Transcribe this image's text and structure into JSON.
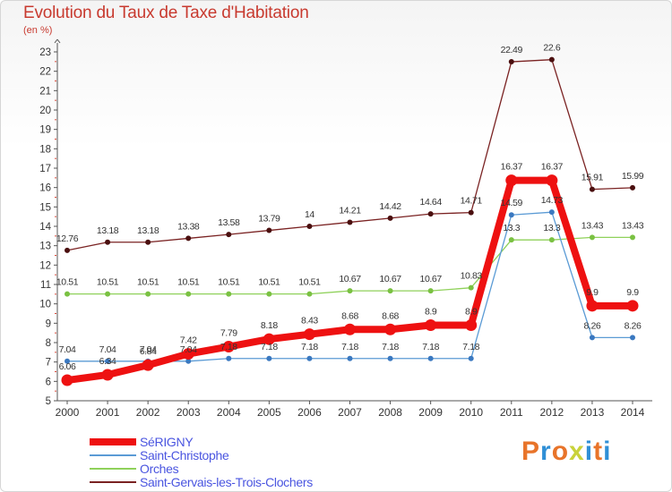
{
  "header": {
    "title": "Evolution du Taux de Taxe d'Habitation",
    "unit": "(en %)"
  },
  "logo": {
    "letters": [
      "P",
      "r",
      "o",
      "x",
      "i",
      "t",
      "i"
    ],
    "colors": [
      "#e8742a",
      "#2f8fd6",
      "#e8742a",
      "#c9d23a",
      "#2f8fd6",
      "#e8742a",
      "#2f8fd6"
    ]
  },
  "chart_data": {
    "type": "line",
    "title": "Evolution du Taux de Taxe d'Habitation",
    "ylabel": "(en %)",
    "xlabel": "",
    "x": [
      "2000",
      "2001",
      "2002",
      "2003",
      "2004",
      "2005",
      "2006",
      "2007",
      "2008",
      "2009",
      "2010",
      "2011",
      "2012",
      "2013",
      "2014"
    ],
    "ylim": [
      5,
      23
    ],
    "yticks": [
      5,
      6,
      7,
      8,
      9,
      10,
      11,
      12,
      13,
      14,
      15,
      16,
      17,
      18,
      19,
      20,
      21,
      22,
      23
    ],
    "grid": false,
    "legend_position": "bottom-left",
    "series": [
      {
        "name": "SéRIGNY",
        "color": "#ee1111",
        "labels": [
          "6.06",
          "6.34",
          "6.84",
          "7.42",
          "7.79",
          "8.18",
          "8.43",
          "8.68",
          "8.68",
          "8.9",
          "8.9",
          "16.37",
          "16.37",
          "9.9",
          "9.9"
        ],
        "values": [
          6.06,
          6.34,
          6.84,
          7.42,
          7.79,
          8.18,
          8.43,
          8.68,
          8.68,
          8.9,
          8.9,
          16.37,
          16.37,
          9.9,
          9.9
        ]
      },
      {
        "name": "Saint-Christophe",
        "color": "#5b9bd5",
        "labels": [
          "7.04",
          "7.04",
          "7.04",
          "7.04",
          "7.18",
          "7.18",
          "7.18",
          "7.18",
          "7.18",
          "7.18",
          "7.18",
          "14.59",
          "14.73",
          "8.26",
          "8.26"
        ],
        "values": [
          7.04,
          7.04,
          7.04,
          7.04,
          7.18,
          7.18,
          7.18,
          7.18,
          7.18,
          7.18,
          7.18,
          14.59,
          14.73,
          8.26,
          8.26
        ]
      },
      {
        "name": "Orches",
        "color": "#8fd15a",
        "labels": [
          "10.51",
          "10.51",
          "10.51",
          "10.51",
          "10.51",
          "10.51",
          "10.51",
          "10.67",
          "10.67",
          "10.67",
          "10.83",
          "13.3",
          "13.3",
          "13.43",
          "13.43"
        ],
        "values": [
          10.51,
          10.51,
          10.51,
          10.51,
          10.51,
          10.51,
          10.51,
          10.67,
          10.67,
          10.67,
          10.83,
          13.3,
          13.3,
          13.43,
          13.43
        ]
      },
      {
        "name": "Saint-Gervais-les-Trois-Clochers",
        "color": "#7a2222",
        "labels": [
          "12.76",
          "13.18",
          "13.18",
          "13.38",
          "13.58",
          "13.79",
          "14",
          "14.21",
          "14.42",
          "14.64",
          "14.71",
          "22.49",
          "22.6",
          "15.91",
          "15.99"
        ],
        "values": [
          12.76,
          13.18,
          13.18,
          13.38,
          13.58,
          13.79,
          14,
          14.21,
          14.42,
          14.64,
          14.71,
          22.49,
          22.6,
          15.91,
          15.99
        ]
      }
    ]
  }
}
